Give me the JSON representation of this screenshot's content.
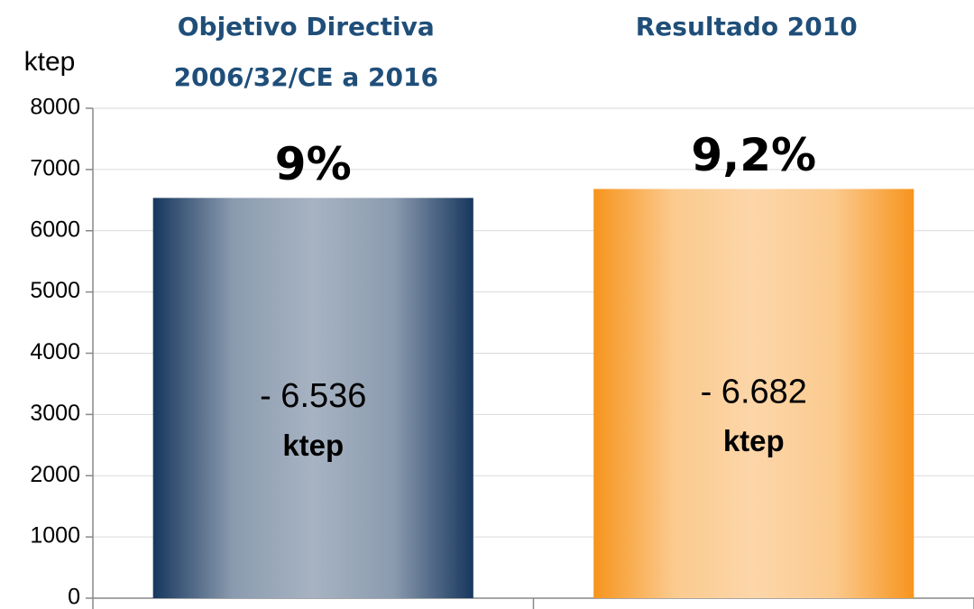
{
  "chart_data": {
    "type": "bar",
    "y_axis_label": "ktep",
    "categories": [
      "Objetivo Directiva 2006/32/CE a 2016",
      "Resultado 2010"
    ],
    "values": [
      6536,
      6682
    ],
    "value_labels": [
      "- 6.536",
      "- 6.682"
    ],
    "value_label_unit": "ktep",
    "annotations": [
      "9%",
      "9,2%"
    ],
    "colors": [
      "#17375e",
      "#f7941d"
    ],
    "ylim": [
      0,
      8000
    ],
    "yticks": [
      0,
      1000,
      2000,
      3000,
      4000,
      5000,
      6000,
      7000,
      8000
    ],
    "grid": true
  }
}
